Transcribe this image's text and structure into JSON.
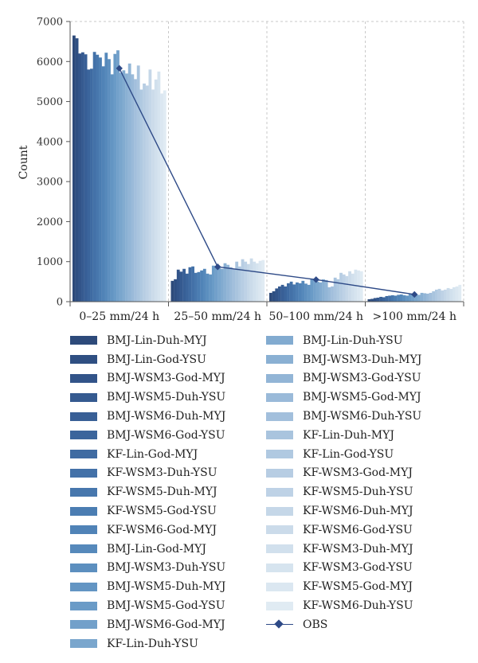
{
  "chart_data": {
    "type": "bar",
    "ylabel": "Count",
    "ylim": [
      0,
      7000
    ],
    "yticks": [
      0,
      1000,
      2000,
      3000,
      4000,
      5000,
      6000,
      7000
    ],
    "grid": "vertical dashed",
    "legend_position": "bottom",
    "categories": [
      "0–25 mm/24 h",
      "25–50 mm/24 h",
      "50–100 mm/24 h",
      ">100 mm/24 h"
    ],
    "series": [
      {
        "name": "BMJ-Lin-Duh-MYJ",
        "values": [
          6650,
          520,
          220,
          60
        ],
        "color": "#2d4a7a"
      },
      {
        "name": "BMJ-Lin-God-YSU",
        "values": [
          6580,
          560,
          260,
          70
        ],
        "color": "#2f4f82"
      },
      {
        "name": "BMJ-WSM3-God-MYJ",
        "values": [
          6200,
          800,
          330,
          90
        ],
        "color": "#325489"
      },
      {
        "name": "BMJ-WSM5-Duh-YSU",
        "values": [
          6230,
          750,
          380,
          100
        ],
        "color": "#355a90"
      },
      {
        "name": "BMJ-WSM6-Duh-MYJ",
        "values": [
          6180,
          820,
          420,
          120
        ],
        "color": "#385f96"
      },
      {
        "name": "BMJ-WSM6-God-YSU",
        "values": [
          5800,
          700,
          380,
          110
        ],
        "color": "#3b659c"
      },
      {
        "name": "KF-Lin-God-MYJ",
        "values": [
          5820,
          860,
          460,
          140
        ],
        "color": "#3f6ba2"
      },
      {
        "name": "KF-WSM3-Duh-YSU",
        "values": [
          6240,
          880,
          500,
          150
        ],
        "color": "#4371a8"
      },
      {
        "name": "KF-WSM5-Duh-MYJ",
        "values": [
          6170,
          720,
          430,
          160
        ],
        "color": "#4777ad"
      },
      {
        "name": "KF-WSM5-God-YSU",
        "values": [
          6100,
          740,
          480,
          150
        ],
        "color": "#4b7db2"
      },
      {
        "name": "KF-WSM6-God-MYJ",
        "values": [
          5880,
          780,
          460,
          170
        ],
        "color": "#5083b7"
      },
      {
        "name": "BMJ-Lin-God-MYJ",
        "values": [
          6220,
          820,
          520,
          180
        ],
        "color": "#5689bb"
      },
      {
        "name": "BMJ-WSM3-Duh-YSU",
        "values": [
          6060,
          700,
          450,
          160
        ],
        "color": "#5c8fbf"
      },
      {
        "name": "BMJ-WSM5-Duh-MYJ",
        "values": [
          5680,
          680,
          420,
          150
        ],
        "color": "#6395c3"
      },
      {
        "name": "BMJ-WSM5-God-YSU",
        "values": [
          6190,
          900,
          560,
          200
        ],
        "color": "#6a9bc7"
      },
      {
        "name": "BMJ-WSM6-God-MYJ",
        "values": [
          6280,
          880,
          540,
          190
        ],
        "color": "#72a0ca"
      },
      {
        "name": "KF-Lin-Duh-YSU",
        "values": [
          5720,
          840,
          500,
          180
        ],
        "color": "#7aa6cd"
      },
      {
        "name": "BMJ-Lin-Duh-YSU",
        "values": [
          5780,
          820,
          480,
          170
        ],
        "color": "#82abd0"
      },
      {
        "name": "BMJ-WSM3-Duh-MYJ",
        "values": [
          5700,
          960,
          560,
          220
        ],
        "color": "#8ab0d3"
      },
      {
        "name": "BMJ-WSM3-God-YSU",
        "values": [
          5950,
          920,
          540,
          210
        ],
        "color": "#92b5d6"
      },
      {
        "name": "BMJ-WSM5-God-MYJ",
        "values": [
          5680,
          860,
          360,
          200
        ],
        "color": "#9abad9"
      },
      {
        "name": "BMJ-WSM6-Duh-YSU",
        "values": [
          5560,
          820,
          380,
          220
        ],
        "color": "#a2bfdc"
      },
      {
        "name": "KF-Lin-Duh-MYJ",
        "values": [
          5900,
          1000,
          600,
          260
        ],
        "color": "#a9c4de"
      },
      {
        "name": "KF-Lin-God-YSU",
        "values": [
          5300,
          880,
          560,
          300
        ],
        "color": "#b0c9e1"
      },
      {
        "name": "KF-WSM3-God-MYJ",
        "values": [
          5450,
          1060,
          720,
          320
        ],
        "color": "#b7cde3"
      },
      {
        "name": "KF-WSM5-Duh-YSU",
        "values": [
          5400,
          1000,
          680,
          280
        ],
        "color": "#bed2e6"
      },
      {
        "name": "KF-WSM6-Duh-MYJ",
        "values": [
          5800,
          940,
          640,
          300
        ],
        "color": "#c5d7e8"
      },
      {
        "name": "KF-WSM6-God-YSU",
        "values": [
          5300,
          1080,
          760,
          340
        ],
        "color": "#cbdbea"
      },
      {
        "name": "KF-WSM3-Duh-MYJ",
        "values": [
          5550,
          1000,
          700,
          320
        ],
        "color": "#d1e0ed"
      },
      {
        "name": "KF-WSM3-God-YSU",
        "values": [
          5750,
          960,
          800,
          360
        ],
        "color": "#d6e4ef"
      },
      {
        "name": "KF-WSM5-God-MYJ",
        "values": [
          5200,
          1020,
          780,
          380
        ],
        "color": "#dbe7f1"
      },
      {
        "name": "KF-WSM6-Duh-YSU",
        "values": [
          5280,
          1040,
          760,
          420
        ],
        "color": "#e0ebf3"
      }
    ],
    "obs": {
      "name": "OBS",
      "values": [
        5830,
        870,
        550,
        180
      ],
      "color": "#2e4a87"
    }
  }
}
